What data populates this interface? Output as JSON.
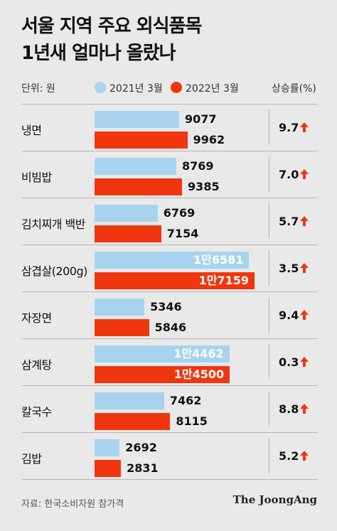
{
  "title": {
    "line1": "서울 지역 주요 외식품목",
    "line2": "1년새 얼마나 올랐나"
  },
  "unit_label": "단위: 원",
  "rate_header": "상승률(%)",
  "source": "자료: 한국소비자원 참가격",
  "brand": "The JoongAng",
  "colors": {
    "series_2021": "#a7d3ef",
    "series_2022": "#f0360f",
    "arrow": "#f0360f"
  },
  "chart_data": {
    "type": "bar",
    "orientation": "horizontal",
    "categories": [
      "냉면",
      "비빔밥",
      "김치찌개 백반",
      "삼겹살(200g)",
      "자장면",
      "삼계탕",
      "칼국수",
      "김밥"
    ],
    "series": [
      {
        "name": "2021년 3월",
        "values": [
          9077,
          8769,
          6769,
          16581,
          5346,
          14462,
          7462,
          2692
        ],
        "labels": [
          "9077",
          "8769",
          "6769",
          "1만6581",
          "5346",
          "1만4462",
          "7462",
          "2692"
        ]
      },
      {
        "name": "2022년 3월",
        "values": [
          9962,
          9385,
          7154,
          17159,
          5846,
          14500,
          8115,
          2831
        ],
        "labels": [
          "9962",
          "9385",
          "7154",
          "1만7159",
          "5846",
          "1만4500",
          "8115",
          "2831"
        ]
      }
    ],
    "rates": [
      "9.7",
      "7.0",
      "5.7",
      "3.5",
      "9.4",
      "0.3",
      "8.8",
      "5.2"
    ],
    "rate_direction": "up",
    "ylabel": "",
    "xlabel": "",
    "grid": false,
    "legend_position": "top"
  }
}
